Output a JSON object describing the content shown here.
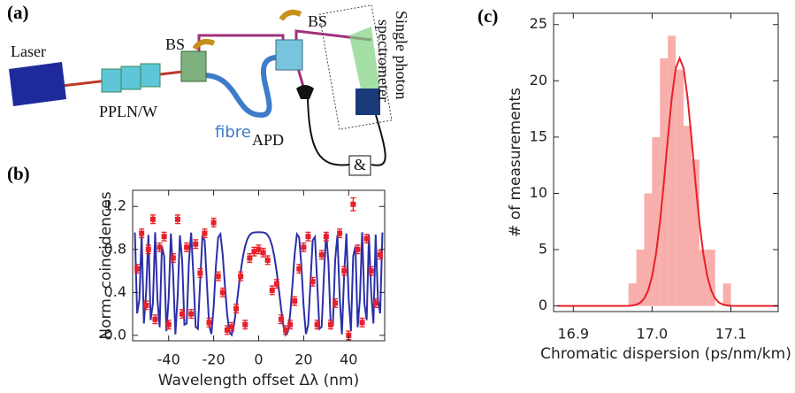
{
  "diagram": {
    "panel": "(a)",
    "laser": "Laser",
    "ppln": "PPLN/W",
    "bs1": "BS",
    "bs2": "BS",
    "fibre": "fibre",
    "apd": "APD",
    "spectrometer": [
      "Single photon",
      "spectrometer"
    ],
    "coincidence": "&"
  },
  "chart_data": [
    {
      "type": "scatter",
      "panel": "(b)",
      "xlabel": "Wavelength offset Δλ (nm)",
      "ylabel": "Norm. coincidences",
      "color": "#e8202a",
      "x": [
        -54,
        -52,
        -50,
        -49,
        -47,
        -46,
        -44,
        -42,
        -40,
        -38,
        -36,
        -34,
        -32,
        -30,
        -28,
        -26,
        -24,
        -22,
        -20,
        -18,
        -16,
        -14,
        -12,
        -10,
        -8,
        -6,
        -4,
        -2,
        0,
        2,
        4,
        6,
        8,
        10,
        12,
        14,
        16,
        18,
        20,
        22,
        24,
        26,
        28,
        30,
        32,
        34,
        36,
        38,
        40,
        42,
        44,
        46,
        48,
        50,
        52,
        54
      ],
      "values": [
        0.62,
        0.95,
        0.28,
        0.8,
        1.08,
        0.15,
        0.82,
        0.92,
        0.1,
        0.72,
        1.08,
        0.2,
        0.82,
        0.2,
        0.85,
        0.58,
        0.95,
        0.12,
        1.05,
        0.55,
        0.4,
        0.05,
        0.08,
        0.25,
        0.55,
        0.1,
        0.72,
        0.78,
        0.8,
        0.77,
        0.7,
        0.42,
        0.48,
        0.15,
        0.05,
        0.1,
        0.32,
        0.62,
        0.82,
        0.92,
        0.5,
        0.1,
        0.75,
        0.92,
        0.1,
        0.3,
        0.95,
        0.6,
        0.0,
        1.22,
        0.8,
        0.12,
        0.9,
        0.6,
        0.3,
        0.75
      ],
      "errors": [
        0.04,
        0.04,
        0.04,
        0.04,
        0.04,
        0.04,
        0.04,
        0.04,
        0.04,
        0.04,
        0.04,
        0.04,
        0.04,
        0.04,
        0.04,
        0.04,
        0.04,
        0.04,
        0.04,
        0.04,
        0.04,
        0.04,
        0.04,
        0.04,
        0.04,
        0.04,
        0.04,
        0.04,
        0.04,
        0.04,
        0.04,
        0.04,
        0.04,
        0.04,
        0.04,
        0.04,
        0.04,
        0.04,
        0.04,
        0.04,
        0.04,
        0.04,
        0.04,
        0.04,
        0.04,
        0.04,
        0.04,
        0.04,
        0.04,
        0.06,
        0.04,
        0.04,
        0.04,
        0.04,
        0.04,
        0.04
      ],
      "fit": {
        "color": "#2b2fa8",
        "x": [
          -55,
          -54,
          -53,
          -52,
          -51,
          -50,
          -49,
          -48,
          -47,
          -46,
          -45,
          -44,
          -43,
          -42,
          -41,
          -40,
          -39,
          -38,
          -37,
          -36,
          -35,
          -34,
          -33,
          -32,
          -31,
          -30,
          -29,
          -28,
          -27,
          -26,
          -25,
          -24,
          -23,
          -22,
          -21,
          -20,
          -19,
          -18,
          -17,
          -16,
          -15,
          -14,
          -13,
          -12,
          -11,
          -10,
          -9,
          -8,
          -7,
          -6,
          -5,
          -4,
          -3,
          -2,
          -1,
          0,
          1,
          2,
          3,
          4,
          5,
          6,
          7,
          8,
          9,
          10,
          11,
          12,
          13,
          14,
          15,
          16,
          17,
          18,
          19,
          20,
          21,
          22,
          23,
          24,
          25,
          26,
          27,
          28,
          29,
          30,
          31,
          32,
          33,
          34,
          35,
          36,
          37,
          38,
          39,
          40,
          41,
          42,
          43,
          44,
          45,
          46,
          47,
          48,
          49,
          50,
          51,
          52,
          53,
          54,
          55
        ],
        "values": [
          0.958,
          0.205,
          0.335,
          0.938,
          0.111,
          0.402,
          0.935,
          0.143,
          0.296,
          0.96,
          0.342,
          0.076,
          0.828,
          0.736,
          0.04,
          0.341,
          0.948,
          0.57,
          0.01,
          0.36,
          0.931,
          0.703,
          0.1,
          0.111,
          0.681,
          0.956,
          0.558,
          0.079,
          0.061,
          0.502,
          0.915,
          0.884,
          0.482,
          0.095,
          0.013,
          0.265,
          0.645,
          0.912,
          0.942,
          0.757,
          0.465,
          0.195,
          0.034,
          0.005,
          0.091,
          0.246,
          0.425,
          0.594,
          0.732,
          0.831,
          0.897,
          0.934,
          0.952,
          0.958,
          0.96,
          0.96,
          0.96,
          0.958,
          0.952,
          0.934,
          0.897,
          0.831,
          0.732,
          0.594,
          0.425,
          0.246,
          0.091,
          0.005,
          0.034,
          0.195,
          0.465,
          0.757,
          0.942,
          0.912,
          0.645,
          0.265,
          0.013,
          0.095,
          0.482,
          0.884,
          0.915,
          0.502,
          0.061,
          0.079,
          0.558,
          0.956,
          0.681,
          0.111,
          0.1,
          0.703,
          0.931,
          0.36,
          0.01,
          0.57,
          0.948,
          0.341,
          0.04,
          0.736,
          0.828,
          0.076,
          0.342,
          0.96,
          0.296,
          0.143,
          0.935,
          0.402,
          0.111,
          0.938,
          0.335,
          0.205,
          0.958
        ]
      },
      "xlim": [
        -56,
        56
      ],
      "xticks": [
        -40,
        -20,
        0,
        20,
        40
      ],
      "ylim": [
        -0.05,
        1.35
      ],
      "yticks": [
        {
          "value": 0,
          "label": "0.0"
        },
        0.4,
        0.8,
        1.2
      ]
    },
    {
      "type": "histogram",
      "panel": "(c)",
      "xlabel": "Chromatic dispersion (ps/nm/km)",
      "ylabel": "# of measurements",
      "color": "#f7a09c",
      "bins": [
        16.97,
        16.98,
        16.99,
        17.0,
        17.01,
        17.02,
        17.03,
        17.04,
        17.05,
        17.06,
        17.07,
        17.08,
        17.09,
        17.1
      ],
      "values": [
        2,
        5,
        10,
        15,
        22,
        24,
        21,
        16,
        13,
        5,
        5,
        0,
        2
      ],
      "fit": {
        "color": "#e8202a",
        "x": [
          16.88,
          16.96,
          16.97,
          16.975,
          16.98,
          16.985,
          16.99,
          16.995,
          17.0,
          17.005,
          17.01,
          17.015,
          17.02,
          17.025,
          17.03,
          17.035,
          17.04,
          17.045,
          17.05,
          17.055,
          17.06,
          17.065,
          17.07,
          17.075,
          17.08,
          17.085,
          17.09,
          17.095,
          17.1,
          17.11,
          17.16
        ],
        "values": [
          0,
          0.001,
          0.015,
          0.043,
          0.118,
          0.29,
          0.664,
          1.38,
          2.64,
          4.64,
          7.46,
          11.0,
          14.9,
          18.5,
          21.1,
          22,
          21.1,
          18.5,
          14.9,
          11.0,
          7.46,
          4.64,
          2.64,
          1.38,
          0.664,
          0.29,
          0.118,
          0.043,
          0.015,
          0.001,
          0
        ]
      },
      "xlim": [
        16.875,
        17.16
      ],
      "xticks": [
        16.9,
        {
          "value": 17,
          "label": "17.0"
        },
        17.1
      ],
      "ylim": [
        -0.5,
        26
      ],
      "yticks": [
        0,
        5,
        10,
        15,
        20,
        25
      ]
    }
  ]
}
